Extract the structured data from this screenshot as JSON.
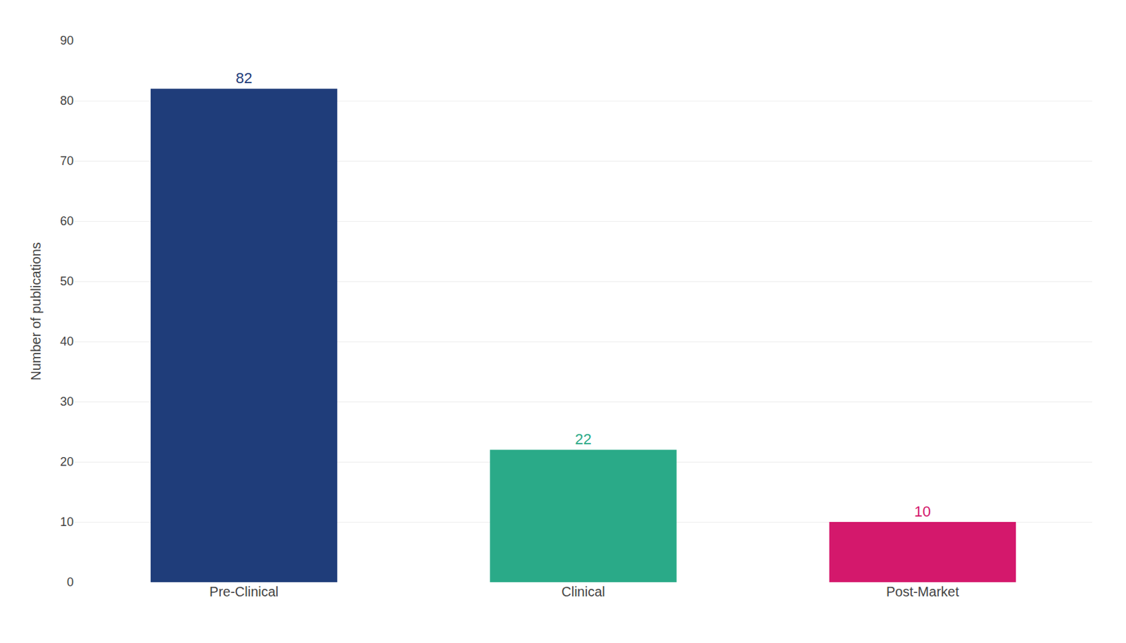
{
  "chart_data": {
    "type": "bar",
    "categories": [
      "Pre-Clinical",
      "Clinical",
      "Post-Market"
    ],
    "values": [
      82,
      22,
      10
    ],
    "colors": [
      "#1f3d7a",
      "#2aaa88",
      "#d4186c"
    ],
    "ylabel": "Number of publications",
    "ylim": [
      0,
      90
    ],
    "yticks": [
      0,
      10,
      20,
      30,
      40,
      50,
      60,
      70,
      80,
      90
    ],
    "grid": true,
    "data_labels": true
  }
}
